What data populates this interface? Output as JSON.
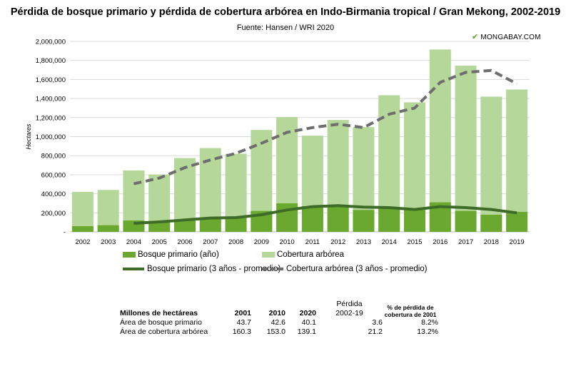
{
  "header": {
    "title": "Pérdida de bosque primario y pérdida de cobertura arbórea en Indo-Birmania tropical / Gran Mekong, 2002-2019",
    "subtitle": "Fuente: Hansen / WRI 2020",
    "brand": "MONGABAY.COM"
  },
  "chart_data": {
    "type": "bar",
    "ylabel": "Hectares",
    "ylim": [
      0,
      2000000
    ],
    "yticks": [
      "-",
      "200,000",
      "400,000",
      "600,000",
      "800,000",
      "1,000,000",
      "1,200,000",
      "1,400,000",
      "1,600,000",
      "1,800,000",
      "2,000,000"
    ],
    "grid": true,
    "legend_position": "bottom",
    "categories": [
      "2002",
      "2003",
      "2004",
      "2005",
      "2006",
      "2007",
      "2008",
      "2009",
      "2010",
      "2011",
      "2012",
      "2013",
      "2014",
      "2015",
      "2016",
      "2017",
      "2018",
      "2019"
    ],
    "series": [
      {
        "name": "Bosque primario (año)",
        "kind": "bar",
        "color": "#6aa830",
        "values": [
          60000,
          70000,
          120000,
          115000,
          125000,
          140000,
          145000,
          220000,
          300000,
          270000,
          270000,
          230000,
          250000,
          230000,
          310000,
          220000,
          180000,
          210000
        ]
      },
      {
        "name": "Cobertura arbórea",
        "kind": "bar",
        "color": "#b6d79a",
        "values": [
          420000,
          440000,
          645000,
          600000,
          775000,
          880000,
          820000,
          1070000,
          1205000,
          1010000,
          1175000,
          1100000,
          1435000,
          1360000,
          1915000,
          1745000,
          1420000,
          1495000
        ]
      },
      {
        "name": "Bosque primario (3 años - promedio)",
        "kind": "line",
        "color": "#3f6b28",
        "values": [
          null,
          null,
          90000,
          105000,
          125000,
          145000,
          150000,
          180000,
          230000,
          265000,
          275000,
          260000,
          255000,
          235000,
          265000,
          255000,
          235000,
          200000
        ]
      },
      {
        "name": "Cobertura arbórea (3 años - promedio)",
        "kind": "dashed-line",
        "color": "#6e6e6e",
        "values": [
          null,
          null,
          505000,
          565000,
          675000,
          755000,
          825000,
          930000,
          1045000,
          1095000,
          1130000,
          1095000,
          1235000,
          1300000,
          1570000,
          1675000,
          1695000,
          1555000
        ]
      }
    ]
  },
  "table": {
    "headers": [
      "Millones de hectáreas",
      "2001",
      "2010",
      "2020",
      "Pérdida\n2002-19",
      "% de pérdida de\ncobertura de 2001"
    ],
    "rows": [
      [
        "Área de bosque primario",
        "43.7",
        "42.6",
        "40.1",
        "3.6",
        "8.2%"
      ],
      [
        "Área de cobertura arbórea",
        "160.3",
        "153.0",
        "139.1",
        "21.2",
        "13.2%"
      ]
    ]
  }
}
